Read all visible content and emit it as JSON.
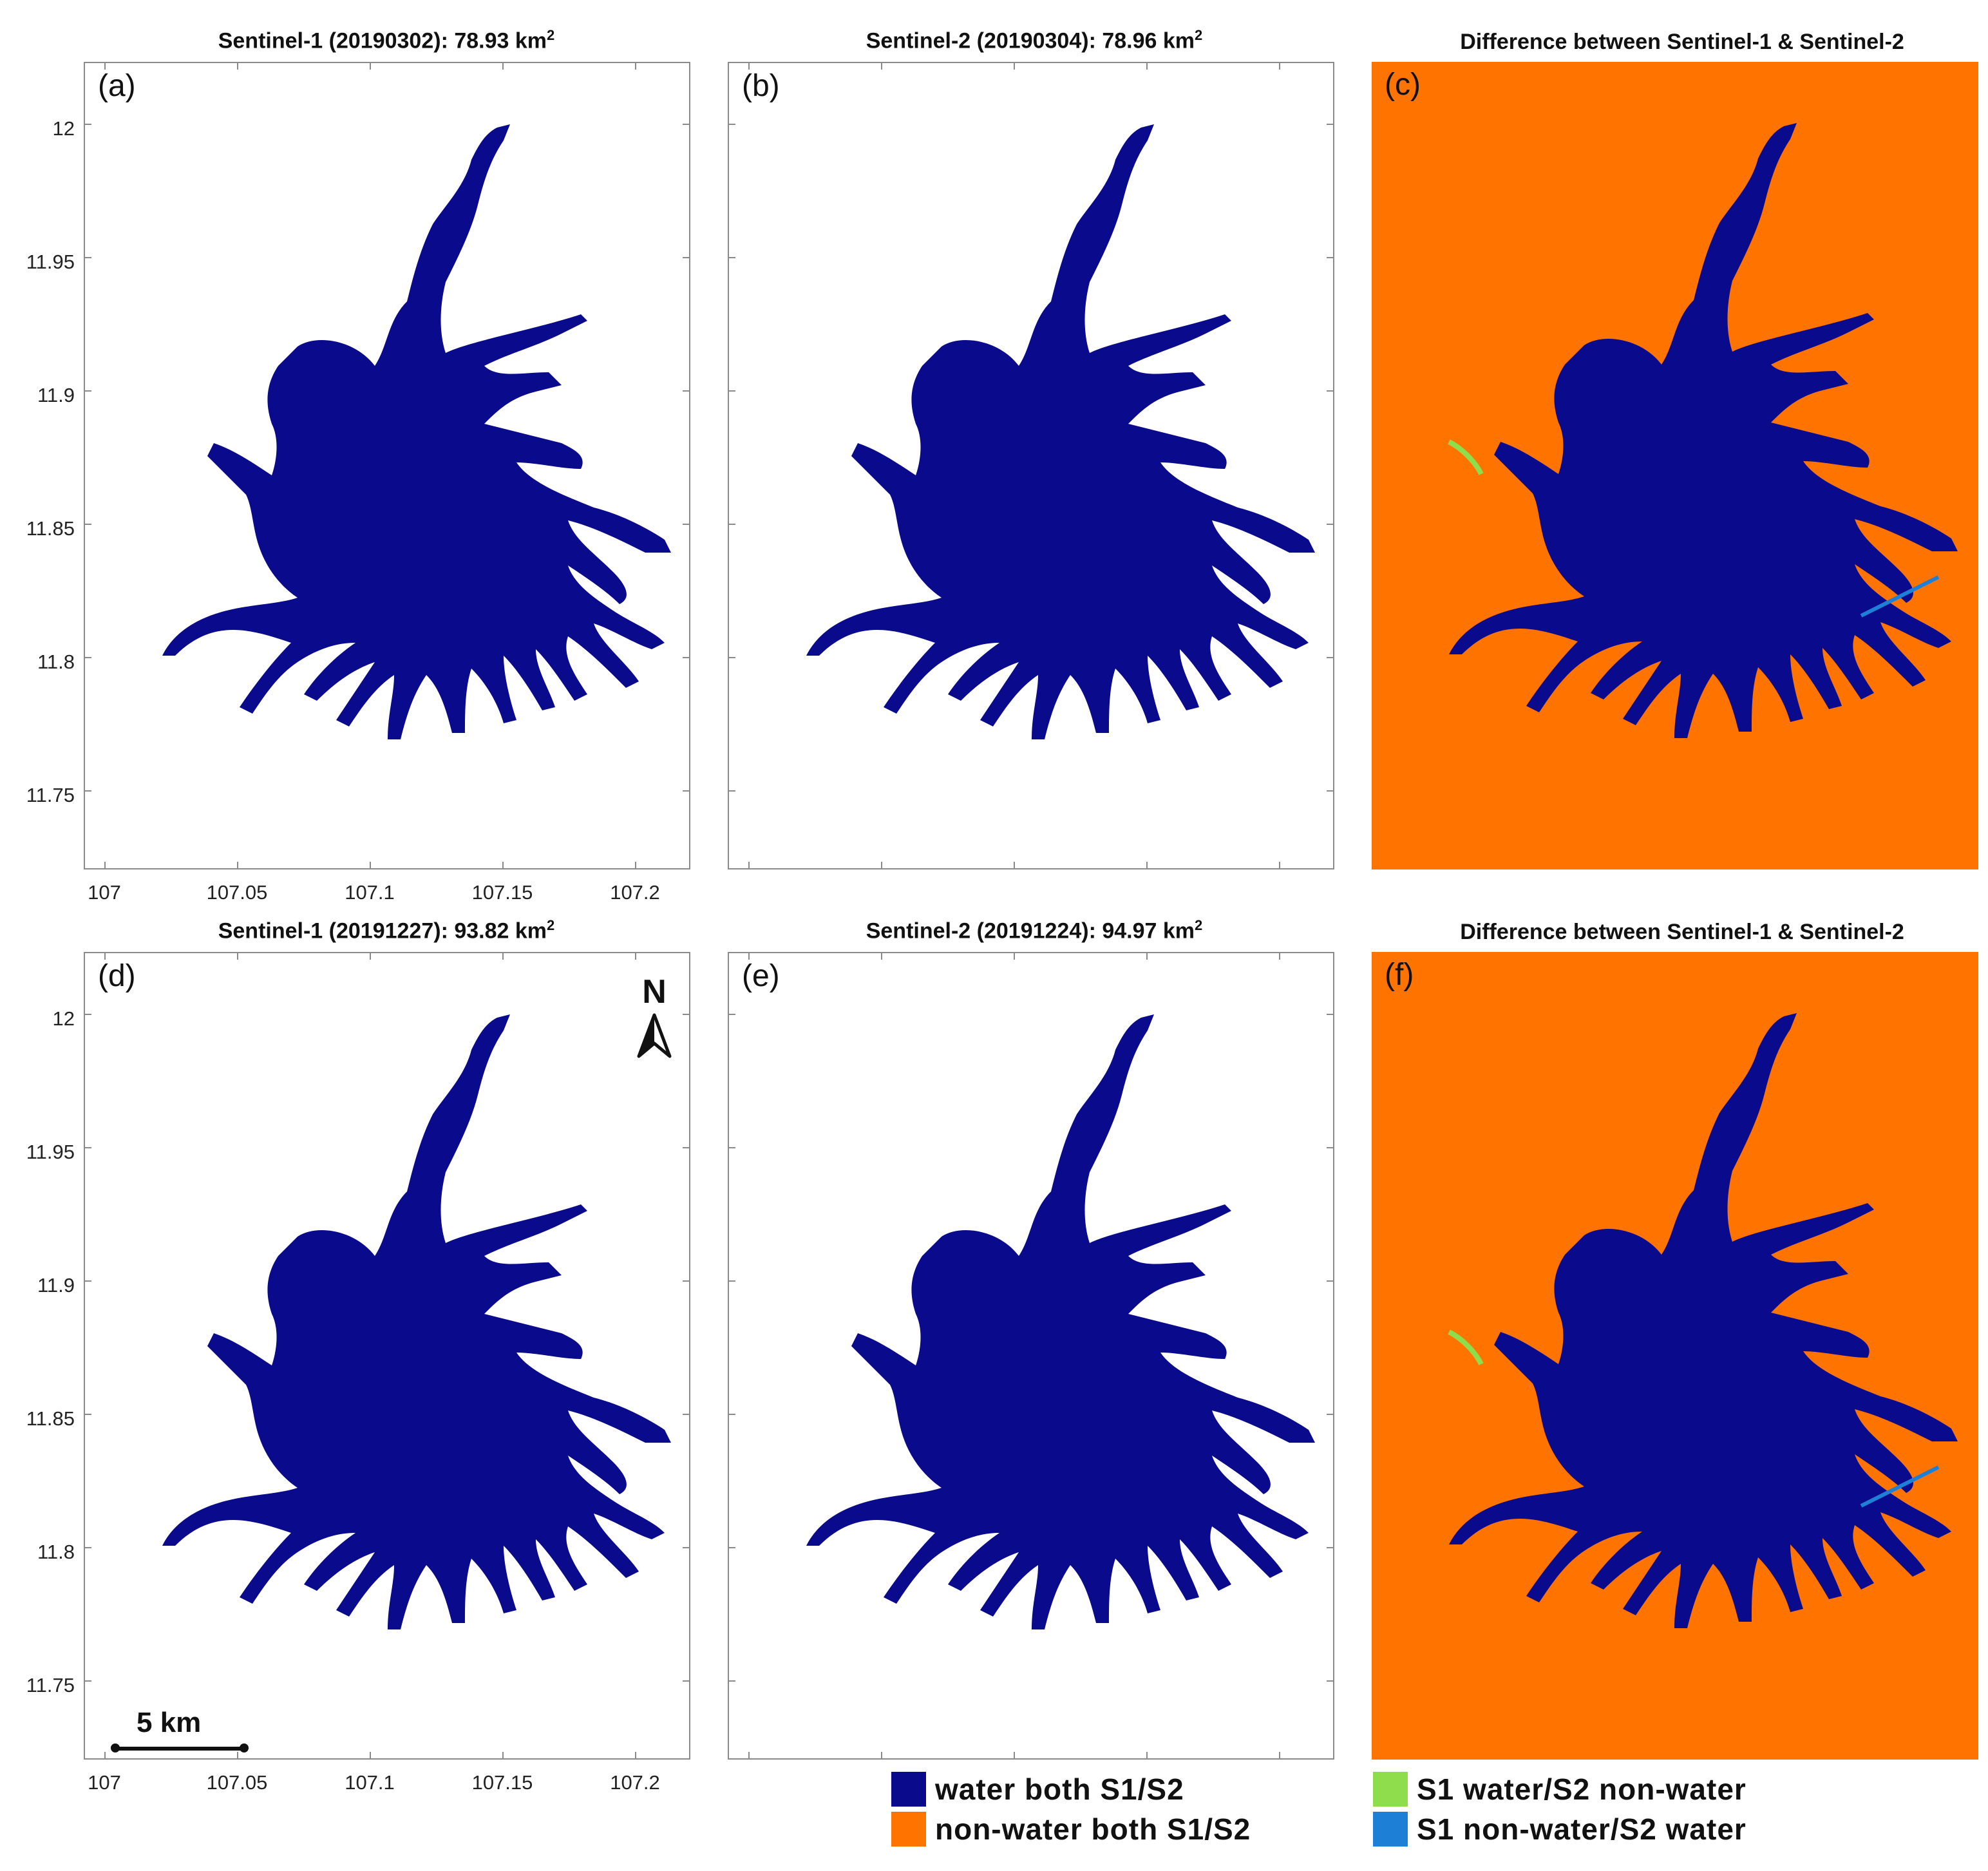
{
  "figure": {
    "panels": [
      {
        "label": "(a)",
        "title_main": "Sentinel-1 (20190302): 78.93 km",
        "title_sup": "2",
        "kind": "mask",
        "water_area_km2": 78.93
      },
      {
        "label": "(b)",
        "title_main": "Sentinel-2 (20190304): 78.96 km",
        "title_sup": "2",
        "kind": "mask",
        "water_area_km2": 78.96
      },
      {
        "label": "(c)",
        "title_main": "Difference between Sentinel-1 & Sentinel-2",
        "title_sup": "",
        "kind": "difference"
      },
      {
        "label": "(d)",
        "title_main": "Sentinel-1 (20191227): 93.82 km",
        "title_sup": "2",
        "kind": "mask",
        "water_area_km2": 93.82
      },
      {
        "label": "(e)",
        "title_main": "Sentinel-2 (20191224): 94.97 km",
        "title_sup": "2",
        "kind": "mask",
        "water_area_km2": 94.97
      },
      {
        "label": "(f)",
        "title_main": "Difference between Sentinel-1 & Sentinel-2",
        "title_sup": "",
        "kind": "difference"
      }
    ],
    "y_ticks": [
      "12",
      "11.95",
      "11.9",
      "11.85",
      "11.8",
      "11.75"
    ],
    "x_ticks": [
      "107",
      "107.05",
      "107.1",
      "107.15",
      "107.2"
    ],
    "north_label": "N",
    "scale_label": "5 km",
    "legend": [
      {
        "label": "water both S1/S2",
        "color": "#0a0a8c"
      },
      {
        "label": "non-water both S1/S2",
        "color": "#ff7300"
      },
      {
        "label": "S1 water/S2 non-water",
        "color": "#8fdc4c"
      },
      {
        "label": "S1 non-water/S2 water",
        "color": "#1e7fd6"
      }
    ],
    "colors": {
      "water": "#0a0a8c",
      "land": "#ff7300",
      "s1_only": "#8fdc4c",
      "s2_only": "#1e7fd6"
    }
  }
}
